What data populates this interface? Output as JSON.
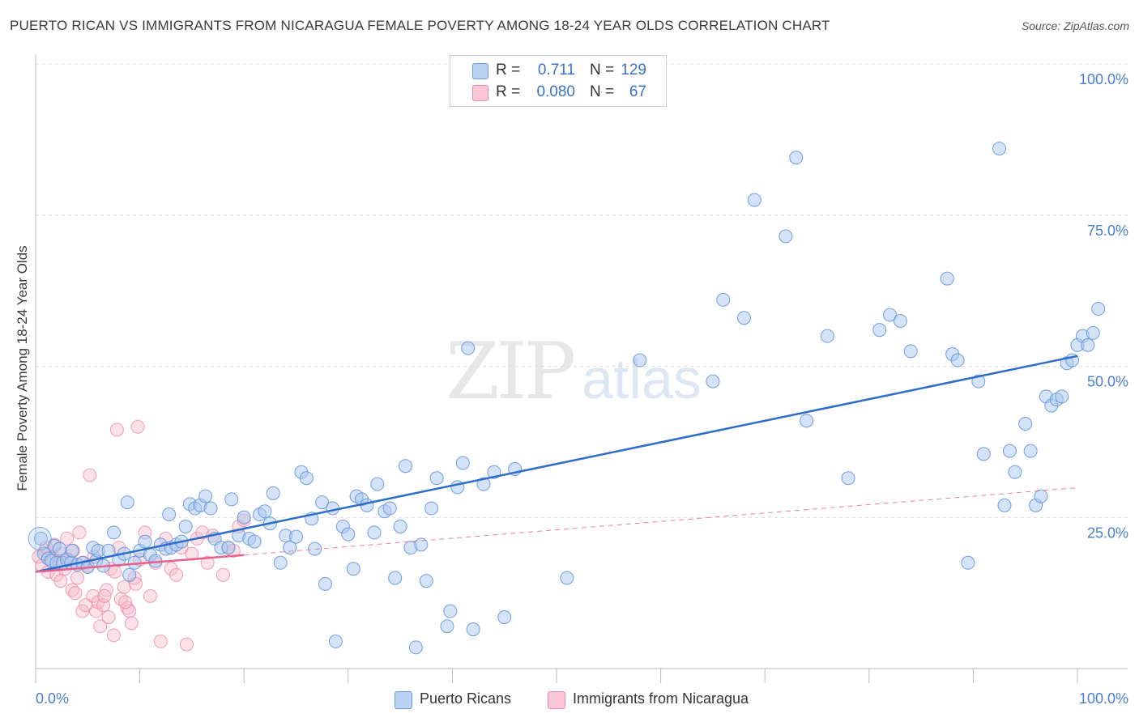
{
  "title": "PUERTO RICAN VS IMMIGRANTS FROM NICARAGUA FEMALE POVERTY AMONG 18-24 YEAR OLDS CORRELATION CHART",
  "source": "Source: ZipAtlas.com",
  "watermark": {
    "zip": "ZIP",
    "atlas": "atlas"
  },
  "stats": {
    "r_label": "R =",
    "n_label": "N =",
    "rows": [
      {
        "series": "Puerto Ricans",
        "r": "0.711",
        "n": "129"
      },
      {
        "series": "Immigrants from Nicaragua",
        "r": "0.080",
        "n": "67"
      }
    ]
  },
  "legend": {
    "items": [
      "Puerto Ricans",
      "Immigrants from Nicaragua"
    ]
  },
  "colors": {
    "blue_fill": "#a9c8f0",
    "blue_stroke": "#5a8fd8",
    "blue_line": "#2d6ccb",
    "pink_fill": "#f7bccd",
    "pink_stroke": "#e9829f",
    "pink_line": "#e6608a",
    "axis_text": "#4a7fd0",
    "grid": "#dcdcdc"
  },
  "chart_data": {
    "type": "scatter",
    "title": "PUERTO RICAN VS IMMIGRANTS FROM NICARAGUA FEMALE POVERTY AMONG 18-24 YEAR OLDS CORRELATION CHART",
    "xlabel": "",
    "ylabel": "Female Poverty Among 18-24 Year Olds",
    "xlim": [
      0,
      100
    ],
    "ylim": [
      0,
      100
    ],
    "x_tick_labels": [
      "0.0%",
      "100.0%"
    ],
    "y_tick_values": [
      25,
      50,
      75,
      100
    ],
    "y_tick_labels": [
      "25.0%",
      "50.0%",
      "75.0%",
      "100.0%"
    ],
    "grid": true,
    "legend_position": "bottom-center",
    "series": [
      {
        "name": "Puerto Ricans",
        "r": 0.711,
        "n": 129,
        "trend": {
          "x": [
            0,
            100
          ],
          "y": [
            16.0,
            51.7
          ],
          "style": "solid"
        },
        "points": [
          [
            0.5,
            21.5
          ],
          [
            0.8,
            19.0
          ],
          [
            1.2,
            18.2
          ],
          [
            1.5,
            17.8
          ],
          [
            1.8,
            20.3
          ],
          [
            2.0,
            17.5
          ],
          [
            2.3,
            19.8
          ],
          [
            2.6,
            17.5
          ],
          [
            3.0,
            18.0
          ],
          [
            3.4,
            17.5
          ],
          [
            3.5,
            19.5
          ],
          [
            4.0,
            17.2
          ],
          [
            4.5,
            17.5
          ],
          [
            5.0,
            16.8
          ],
          [
            5.5,
            20.0
          ],
          [
            5.8,
            17.8
          ],
          [
            6.0,
            19.5
          ],
          [
            6.5,
            17.0
          ],
          [
            7.0,
            19.5
          ],
          [
            7.5,
            22.5
          ],
          [
            8.0,
            18.0
          ],
          [
            8.5,
            19.0
          ],
          [
            9.0,
            15.5
          ],
          [
            8.8,
            27.5
          ],
          [
            9.5,
            17.5
          ],
          [
            10.0,
            19.5
          ],
          [
            10.5,
            21.0
          ],
          [
            11.0,
            18.8
          ],
          [
            11.5,
            17.8
          ],
          [
            12.0,
            20.5
          ],
          [
            12.5,
            19.8
          ],
          [
            12.8,
            25.5
          ],
          [
            13.0,
            20.0
          ],
          [
            13.5,
            20.5
          ],
          [
            14.0,
            21.0
          ],
          [
            14.4,
            23.5
          ],
          [
            14.8,
            27.2
          ],
          [
            15.3,
            26.5
          ],
          [
            15.8,
            27.0
          ],
          [
            16.3,
            28.5
          ],
          [
            16.8,
            26.5
          ],
          [
            17.2,
            21.5
          ],
          [
            17.8,
            20.0
          ],
          [
            18.5,
            20.0
          ],
          [
            18.8,
            28.0
          ],
          [
            19.5,
            22.0
          ],
          [
            20.0,
            25.0
          ],
          [
            20.5,
            21.5
          ],
          [
            21.0,
            21.0
          ],
          [
            21.5,
            25.5
          ],
          [
            22.0,
            26.0
          ],
          [
            22.5,
            24.0
          ],
          [
            22.8,
            29.0
          ],
          [
            23.5,
            17.5
          ],
          [
            24.0,
            22.0
          ],
          [
            24.4,
            20.0
          ],
          [
            25.0,
            21.8
          ],
          [
            25.5,
            32.5
          ],
          [
            26.0,
            31.5
          ],
          [
            26.5,
            24.8
          ],
          [
            26.8,
            19.8
          ],
          [
            27.5,
            27.5
          ],
          [
            27.8,
            14.0
          ],
          [
            28.5,
            26.5
          ],
          [
            28.8,
            4.5
          ],
          [
            29.5,
            23.5
          ],
          [
            30.0,
            22.2
          ],
          [
            30.5,
            16.5
          ],
          [
            30.8,
            28.5
          ],
          [
            31.3,
            28.0
          ],
          [
            31.8,
            27.0
          ],
          [
            32.5,
            22.5
          ],
          [
            32.8,
            30.5
          ],
          [
            33.5,
            26.0
          ],
          [
            34.0,
            26.5
          ],
          [
            34.5,
            15.0
          ],
          [
            35.0,
            23.5
          ],
          [
            35.5,
            33.5
          ],
          [
            36.0,
            20.0
          ],
          [
            36.5,
            3.5
          ],
          [
            37.0,
            20.5
          ],
          [
            37.5,
            14.5
          ],
          [
            38.0,
            26.5
          ],
          [
            38.5,
            31.5
          ],
          [
            39.5,
            7.0
          ],
          [
            39.8,
            9.5
          ],
          [
            40.5,
            30.0
          ],
          [
            41.0,
            34.0
          ],
          [
            41.5,
            53.0
          ],
          [
            42.0,
            6.5
          ],
          [
            43.0,
            30.5
          ],
          [
            44.0,
            32.5
          ],
          [
            45.0,
            8.5
          ],
          [
            46.0,
            33.0
          ],
          [
            51.0,
            15.0
          ],
          [
            58.0,
            51.0
          ],
          [
            65.0,
            47.5
          ],
          [
            66.0,
            61.0
          ],
          [
            68.0,
            58.0
          ],
          [
            69.0,
            77.5
          ],
          [
            72.0,
            71.5
          ],
          [
            73.0,
            84.5
          ],
          [
            74.0,
            41.0
          ],
          [
            76.0,
            55.0
          ],
          [
            78.0,
            31.5
          ],
          [
            81.0,
            56.0
          ],
          [
            82.0,
            58.5
          ],
          [
            83.0,
            57.5
          ],
          [
            84.0,
            52.5
          ],
          [
            87.5,
            64.5
          ],
          [
            88.0,
            52.0
          ],
          [
            88.5,
            51.0
          ],
          [
            89.5,
            17.5
          ],
          [
            90.5,
            47.5
          ],
          [
            91.0,
            35.5
          ],
          [
            92.5,
            86.0
          ],
          [
            93.0,
            27.0
          ],
          [
            93.5,
            36.0
          ],
          [
            94.0,
            32.5
          ],
          [
            95.0,
            40.5
          ],
          [
            95.5,
            36.0
          ],
          [
            96.0,
            27.0
          ],
          [
            96.5,
            28.5
          ],
          [
            97.0,
            45.0
          ],
          [
            97.5,
            43.5
          ],
          [
            98.0,
            44.5
          ],
          [
            98.5,
            45.0
          ],
          [
            99.0,
            50.5
          ],
          [
            99.5,
            51.0
          ],
          [
            100.0,
            53.5
          ],
          [
            100.5,
            55.0
          ],
          [
            101.0,
            53.5
          ],
          [
            101.5,
            55.5
          ],
          [
            102.0,
            59.5
          ]
        ]
      },
      {
        "name": "Immigrants from Nicaragua",
        "r": 0.08,
        "n": 67,
        "trend": {
          "x": [
            0,
            100
          ],
          "y": [
            16.0,
            29.9
          ],
          "style": "dashed",
          "solid_until": 20
        },
        "points": [
          [
            0.3,
            18.5
          ],
          [
            0.6,
            17.0
          ],
          [
            0.9,
            19.5
          ],
          [
            1.2,
            16.0
          ],
          [
            1.5,
            18.0
          ],
          [
            1.8,
            20.5
          ],
          [
            2.0,
            15.5
          ],
          [
            2.2,
            17.5
          ],
          [
            2.5,
            19.0
          ],
          [
            2.8,
            16.5
          ],
          [
            3.0,
            21.5
          ],
          [
            3.2,
            18.0
          ],
          [
            3.5,
            13.0
          ],
          [
            3.8,
            12.5
          ],
          [
            4.0,
            15.0
          ],
          [
            4.2,
            22.5
          ],
          [
            4.5,
            9.5
          ],
          [
            4.8,
            10.5
          ],
          [
            5.0,
            17.0
          ],
          [
            5.2,
            32.0
          ],
          [
            5.5,
            12.0
          ],
          [
            5.8,
            9.5
          ],
          [
            6.0,
            11.0
          ],
          [
            6.2,
            7.0
          ],
          [
            6.5,
            10.5
          ],
          [
            6.8,
            13.0
          ],
          [
            7.0,
            8.5
          ],
          [
            7.2,
            16.5
          ],
          [
            7.5,
            5.5
          ],
          [
            7.8,
            39.5
          ],
          [
            8.0,
            20.0
          ],
          [
            8.2,
            11.5
          ],
          [
            8.5,
            13.5
          ],
          [
            8.8,
            10.0
          ],
          [
            9.0,
            9.5
          ],
          [
            9.2,
            7.5
          ],
          [
            9.5,
            15.0
          ],
          [
            9.8,
            40.0
          ],
          [
            10.0,
            18.0
          ],
          [
            10.5,
            22.5
          ],
          [
            11.0,
            12.0
          ],
          [
            11.5,
            17.5
          ],
          [
            12.0,
            4.5
          ],
          [
            12.5,
            21.5
          ],
          [
            13.0,
            16.5
          ],
          [
            13.5,
            15.5
          ],
          [
            14.0,
            20.0
          ],
          [
            14.5,
            4.0
          ],
          [
            15.0,
            19.0
          ],
          [
            15.5,
            21.5
          ],
          [
            16.0,
            22.5
          ],
          [
            16.5,
            17.5
          ],
          [
            17.0,
            22.0
          ],
          [
            18.0,
            15.5
          ],
          [
            18.5,
            20.0
          ],
          [
            19.0,
            19.5
          ],
          [
            19.5,
            23.5
          ],
          [
            20.0,
            24.5
          ],
          [
            1.0,
            20.0
          ],
          [
            2.4,
            14.5
          ],
          [
            3.6,
            19.5
          ],
          [
            4.6,
            17.5
          ],
          [
            5.6,
            18.5
          ],
          [
            6.6,
            12.0
          ],
          [
            7.6,
            16.0
          ],
          [
            8.6,
            11.0
          ],
          [
            9.6,
            14.0
          ]
        ]
      }
    ]
  }
}
